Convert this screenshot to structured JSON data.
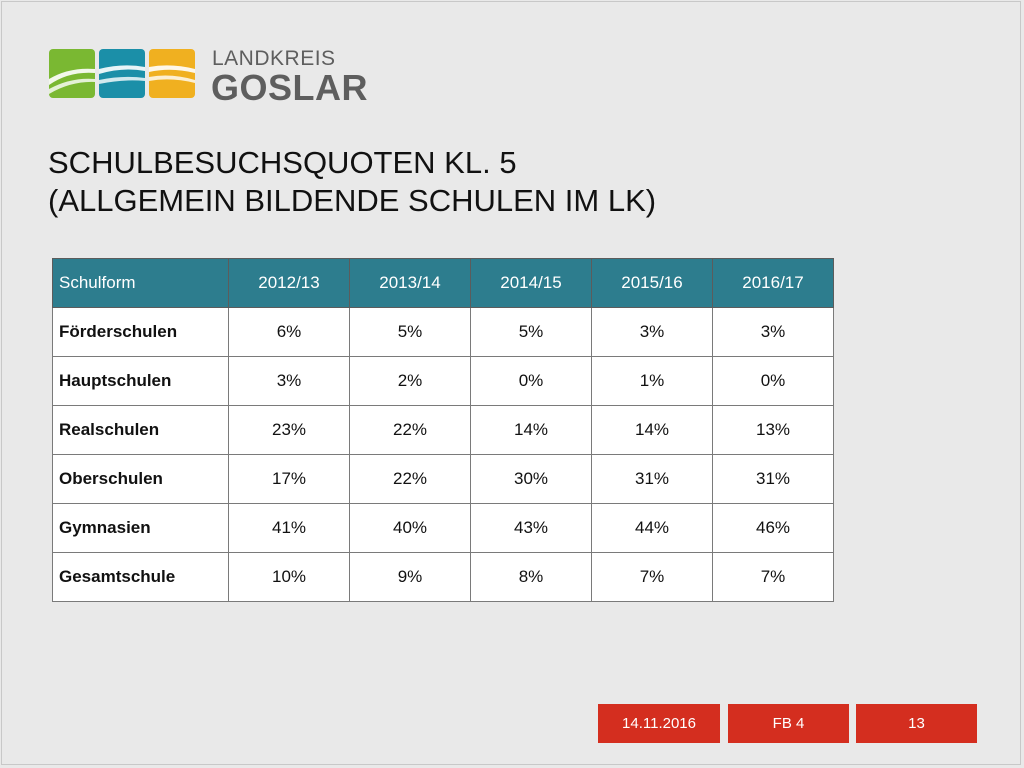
{
  "logo": {
    "line1": "LANDKREIS",
    "line2": "GOSLAR",
    "colors": [
      "#7ab832",
      "#1b8fa8",
      "#f0b020"
    ]
  },
  "title": {
    "line1": "SCHULBESUCHSQUOTEN KL. 5",
    "line2": "(ALLGEMEIN BILDENDE SCHULEN IM LK)"
  },
  "table": {
    "header_label": "Schulform",
    "columns": [
      "2012/13",
      "2013/14",
      "2014/15",
      "2015/16",
      "2016/17"
    ],
    "rows": [
      {
        "label": "Förderschulen",
        "values": [
          "6%",
          "5%",
          "5%",
          "3%",
          "3%"
        ]
      },
      {
        "label": "Hauptschulen",
        "values": [
          "3%",
          "2%",
          "0%",
          "1%",
          "0%"
        ]
      },
      {
        "label": "Realschulen",
        "values": [
          "23%",
          "22%",
          "14%",
          "14%",
          "13%"
        ]
      },
      {
        "label": "Oberschulen",
        "values": [
          "17%",
          "22%",
          "30%",
          "31%",
          "31%"
        ]
      },
      {
        "label": "Gymnasien",
        "values": [
          "41%",
          "40%",
          "43%",
          "44%",
          "46%"
        ]
      },
      {
        "label": "Gesamtschule",
        "values": [
          "10%",
          "9%",
          "8%",
          "7%",
          "7%"
        ]
      }
    ],
    "header_color": "#2d7d8e"
  },
  "footer": {
    "date": "14.11.2016",
    "department": "FB 4",
    "page_number": "13",
    "color": "#d42e1f"
  }
}
